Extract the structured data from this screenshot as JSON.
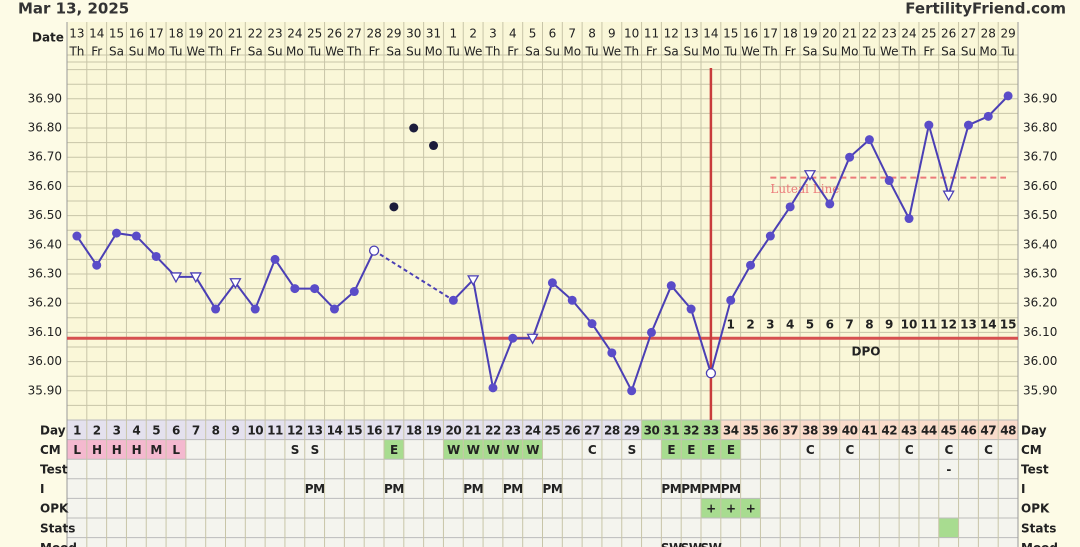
{
  "header": {
    "date": "Mar 13, 2025",
    "site": "FertilityFriend.com"
  },
  "chart_data": {
    "type": "line",
    "date_label": "Date",
    "dates": [
      13,
      14,
      15,
      16,
      17,
      18,
      19,
      20,
      21,
      22,
      23,
      24,
      25,
      26,
      27,
      28,
      29,
      30,
      31,
      1,
      2,
      3,
      4,
      5,
      6,
      7,
      8,
      9,
      10,
      11,
      12,
      13,
      14,
      15,
      16,
      17,
      18,
      19,
      20,
      21,
      22,
      23,
      24,
      25,
      26,
      27,
      28,
      29
    ],
    "weekdays": [
      "Th",
      "Fr",
      "Sa",
      "Su",
      "Mo",
      "Tu",
      "We",
      "Th",
      "Fr",
      "Sa",
      "Su",
      "Mo",
      "Tu",
      "We",
      "Th",
      "Fr",
      "Sa",
      "Su",
      "Mo",
      "Tu",
      "We",
      "Th",
      "Fr",
      "Sa",
      "Su",
      "Mo",
      "Tu",
      "We",
      "Th",
      "Fr",
      "Sa",
      "Su",
      "Mo",
      "Tu",
      "We",
      "Th",
      "Fr",
      "Sa",
      "Su",
      "Mo",
      "Tu",
      "We",
      "Th",
      "Fr",
      "Sa",
      "Su",
      "Mo",
      "Tu"
    ],
    "series": [
      {
        "name": "Temperature",
        "color": "#4b3fb5",
        "excluded_color": "#1c1c3c",
        "values": [
          36.43,
          36.33,
          36.44,
          36.43,
          36.36,
          36.29,
          36.29,
          36.18,
          36.27,
          36.18,
          36.35,
          36.25,
          36.25,
          36.18,
          36.24,
          36.38,
          36.53,
          36.8,
          36.74,
          36.21,
          36.28,
          35.91,
          36.08,
          36.08,
          36.27,
          36.21,
          36.13,
          36.03,
          35.9,
          36.1,
          36.26,
          36.18,
          35.96,
          36.21,
          36.33,
          36.43,
          36.53,
          36.64,
          36.54,
          36.7,
          36.76,
          36.62,
          36.49,
          36.81,
          36.57,
          36.81,
          36.84,
          36.91
        ],
        "markers": [
          "dot",
          "dot",
          "dot",
          "dot",
          "dot",
          "tri",
          "tri",
          "dot",
          "tri",
          "dot",
          "dot",
          "dot",
          "dot",
          "dot",
          "dot",
          "open",
          "excl",
          "excl",
          "excl",
          "dot",
          "tri",
          "dot",
          "dot",
          "tri",
          "dot",
          "dot",
          "dot",
          "dot",
          "dot",
          "dot",
          "dot",
          "dot",
          "open",
          "dot",
          "dot",
          "dot",
          "dot",
          "tri",
          "dot",
          "dot",
          "dot",
          "dot",
          "dot",
          "dot",
          "tri",
          "dot",
          "dot",
          "dot"
        ]
      }
    ],
    "ylim": [
      35.8,
      37.05
    ],
    "yticks": [
      {
        "value": 35.9,
        "label": "35.90"
      },
      {
        "value": 36.0,
        "label": "36.00"
      },
      {
        "value": 36.1,
        "label": "36.10"
      },
      {
        "value": 36.2,
        "label": "36.20"
      },
      {
        "value": 36.3,
        "label": "36.30"
      },
      {
        "value": 36.4,
        "label": "36.40"
      },
      {
        "value": 36.5,
        "label": "36.50"
      },
      {
        "value": 36.6,
        "label": "36.60"
      },
      {
        "value": 36.7,
        "label": "36.70"
      },
      {
        "value": 36.8,
        "label": "36.80"
      },
      {
        "value": 36.9,
        "label": "36.90"
      }
    ],
    "grid": true,
    "coverline": {
      "value": 36.08,
      "color": "#d65050"
    },
    "ovulation_day": 33,
    "luteal_line": {
      "value": 36.63,
      "label": "Luteal Line",
      "start_day": 36,
      "color": "#ec7a7a"
    },
    "dpo": {
      "label": "DPO",
      "start_day": 34,
      "values": [
        1,
        2,
        3,
        4,
        5,
        6,
        7,
        8,
        9,
        10,
        11,
        12,
        13,
        14,
        15
      ]
    },
    "rows": [
      {
        "label": "Day",
        "cells": [
          1,
          2,
          3,
          4,
          5,
          6,
          7,
          8,
          9,
          10,
          11,
          12,
          13,
          14,
          15,
          16,
          17,
          18,
          19,
          20,
          21,
          22,
          23,
          24,
          25,
          26,
          27,
          28,
          29,
          30,
          31,
          32,
          33,
          34,
          35,
          36,
          37,
          38,
          39,
          40,
          41,
          42,
          43,
          44,
          45,
          46,
          47,
          48
        ],
        "fills": [
          "#e4e1ee",
          "#e4e1ee",
          "#e4e1ee",
          "#e4e1ee",
          "#e4e1ee",
          "#e4e1ee",
          "#e4e1ee",
          "#e4e1ee",
          "#e4e1ee",
          "#e4e1ee",
          "#e4e1ee",
          "#e4e1ee",
          "#e4e1ee",
          "#e4e1ee",
          "#e4e1ee",
          "#e4e1ee",
          "#e4e1ee",
          "#e4e1ee",
          "#e4e1ee",
          "#e4e1ee",
          "#e4e1ee",
          "#e4e1ee",
          "#e4e1ee",
          "#e4e1ee",
          "#e4e1ee",
          "#e4e1ee",
          "#e4e1ee",
          "#e4e1ee",
          "#e4e1ee",
          "#a8dc90",
          "#a8dc90",
          "#a8dc90",
          "#a8dc90",
          "#fadccb",
          "#fadccb",
          "#fadccb",
          "#fadccb",
          "#fadccb",
          "#fadccb",
          "#fadccb",
          "#fadccb",
          "#fadccb",
          "#fadccb",
          "#fadccb",
          "#fadccb",
          "#fadccb",
          "#fadccb",
          "#fadccb"
        ]
      },
      {
        "label": "CM",
        "cells": [
          "L",
          "H",
          "H",
          "H",
          "M",
          "L",
          null,
          null,
          null,
          null,
          null,
          "S",
          "S",
          null,
          null,
          null,
          "E",
          null,
          null,
          "W",
          "W",
          "W",
          "W",
          "W",
          null,
          null,
          "C",
          null,
          "S",
          null,
          "E",
          "E",
          "E",
          "E",
          null,
          null,
          null,
          "C",
          null,
          "C",
          null,
          null,
          "C",
          null,
          "C",
          null,
          "C",
          null
        ],
        "fill_by_text": {
          "L": "#f4b9cf",
          "H": "#f4b9cf",
          "M": "#f4b9cf",
          "E": "#a8dc90",
          "W": "#a8dc90"
        }
      },
      {
        "label": "Test",
        "cells": [
          null,
          null,
          null,
          null,
          null,
          null,
          null,
          null,
          null,
          null,
          null,
          null,
          null,
          null,
          null,
          null,
          null,
          null,
          null,
          null,
          null,
          null,
          null,
          null,
          null,
          null,
          null,
          null,
          null,
          null,
          null,
          null,
          null,
          null,
          null,
          null,
          null,
          null,
          null,
          null,
          null,
          null,
          null,
          null,
          "-",
          null,
          null,
          null
        ]
      },
      {
        "label": "I",
        "cells": [
          null,
          null,
          null,
          null,
          null,
          null,
          null,
          null,
          null,
          null,
          null,
          null,
          "PM",
          null,
          null,
          null,
          "PM",
          null,
          null,
          null,
          "PM",
          null,
          "PM",
          null,
          "PM",
          null,
          null,
          null,
          null,
          null,
          "PM",
          "PM",
          "PM",
          "PM",
          null,
          null,
          null,
          null,
          null,
          null,
          null,
          null,
          null,
          null,
          null,
          null,
          null,
          null
        ]
      },
      {
        "label": "OPK",
        "cells": [
          null,
          null,
          null,
          null,
          null,
          null,
          null,
          null,
          null,
          null,
          null,
          null,
          null,
          null,
          null,
          null,
          null,
          null,
          null,
          null,
          null,
          null,
          null,
          null,
          null,
          null,
          null,
          null,
          null,
          null,
          null,
          null,
          "+",
          "+",
          "+",
          null,
          null,
          null,
          null,
          null,
          null,
          null,
          null,
          null,
          null,
          null,
          null,
          null
        ],
        "fill_by_text": {
          "+": "#a8dc90"
        }
      },
      {
        "label": "Stats",
        "fills": [
          null,
          null,
          null,
          null,
          null,
          null,
          null,
          null,
          null,
          null,
          null,
          null,
          null,
          null,
          null,
          null,
          null,
          null,
          null,
          null,
          null,
          null,
          null,
          null,
          null,
          null,
          null,
          null,
          null,
          null,
          null,
          null,
          null,
          null,
          null,
          null,
          null,
          null,
          null,
          null,
          null,
          null,
          null,
          null,
          "#a8dc90",
          null,
          null,
          null
        ]
      },
      {
        "label": "Mood",
        "cells": [
          null,
          null,
          null,
          null,
          null,
          null,
          null,
          null,
          null,
          null,
          null,
          null,
          null,
          null,
          null,
          null,
          null,
          null,
          null,
          null,
          null,
          null,
          null,
          null,
          null,
          null,
          null,
          null,
          null,
          null,
          "SW",
          "SW",
          "SW",
          null,
          null,
          null,
          null,
          null,
          null,
          null,
          null,
          null,
          null,
          null,
          null,
          null,
          null,
          null
        ]
      }
    ]
  }
}
